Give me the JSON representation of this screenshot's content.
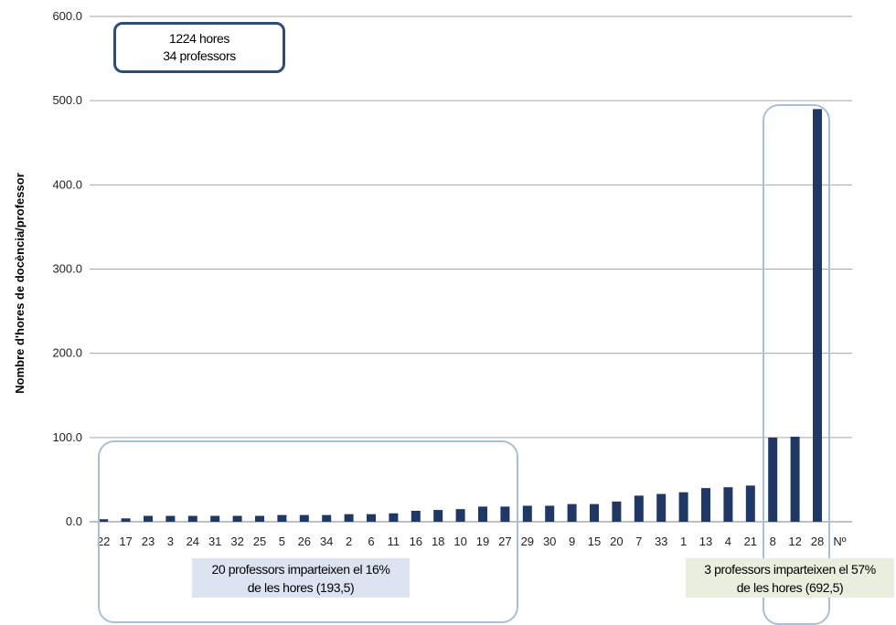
{
  "chart_data": {
    "type": "bar",
    "categories": [
      "22",
      "17",
      "23",
      "3",
      "24",
      "31",
      "32",
      "25",
      "5",
      "26",
      "34",
      "2",
      "6",
      "11",
      "16",
      "18",
      "10",
      "19",
      "27",
      "29",
      "30",
      "9",
      "15",
      "20",
      "7",
      "33",
      "1",
      "13",
      "4",
      "21",
      "8",
      "12",
      "28"
    ],
    "values": [
      3,
      4,
      7,
      7,
      7,
      7,
      7,
      7,
      8,
      8,
      8,
      9,
      9,
      10,
      13,
      14,
      15,
      18,
      18,
      19,
      19,
      21,
      21,
      24,
      31,
      33,
      35,
      40,
      41,
      43,
      100,
      101,
      490
    ],
    "extra_tick": "Nº",
    "ylabel": "Nombre d'hores de docència/professor",
    "ylim": [
      0,
      600
    ],
    "yticks": [
      0,
      100,
      200,
      300,
      400,
      500,
      600
    ],
    "ytick_labels": [
      "0.0",
      "100.0",
      "200.0",
      "300.0",
      "400.0",
      "500.0",
      "600.0"
    ],
    "grid": true,
    "bar_color": "#1f3864"
  },
  "annotations": {
    "summary_hours": "1224 hores",
    "summary_professors": "34 professors",
    "left_line1": "20 professors imparteixen el 16%",
    "left_line2": "de les hores (193,5)",
    "right_line1": "3 professors imparteixen el 57%",
    "right_line2": "de les hores (692,5)"
  }
}
